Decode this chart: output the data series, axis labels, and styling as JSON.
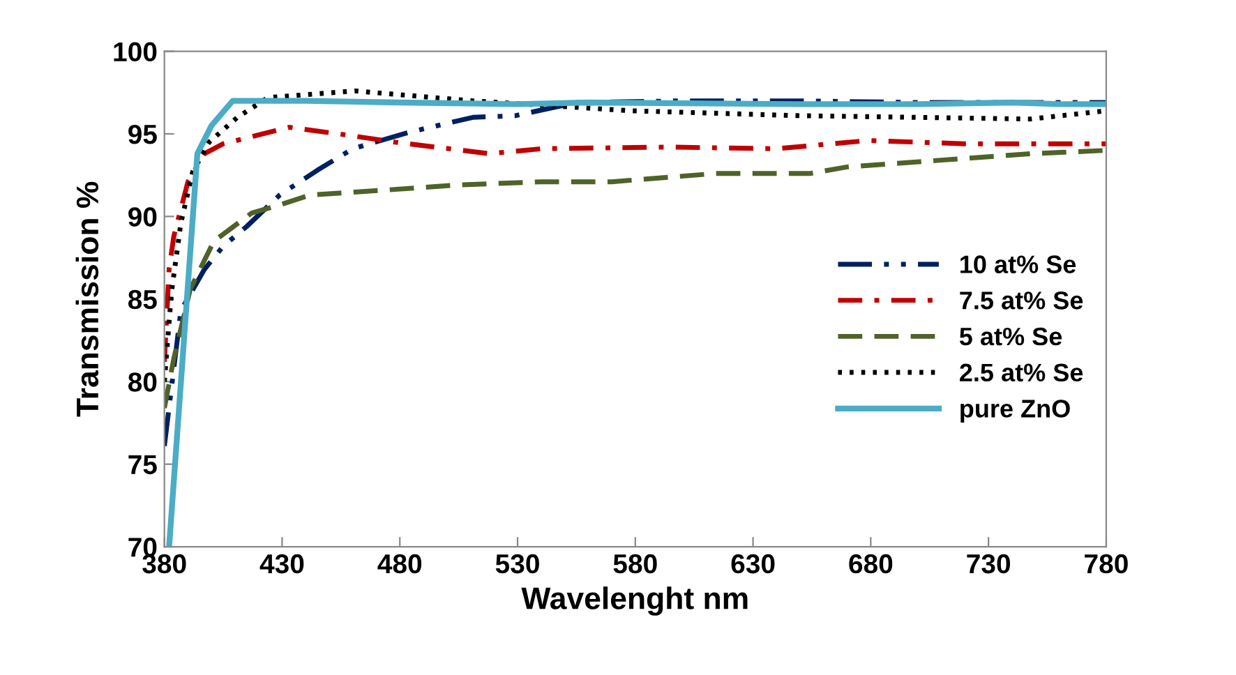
{
  "chart_data": {
    "type": "line",
    "xlabel": "Wavelenght nm",
    "ylabel": "Transmission %",
    "xlim": [
      380,
      780
    ],
    "ylim": [
      70,
      100
    ],
    "xticks": [
      380,
      430,
      480,
      530,
      580,
      630,
      680,
      730,
      780
    ],
    "yticks": [
      70,
      75,
      80,
      85,
      90,
      95,
      100
    ],
    "grid": false,
    "legend": "right",
    "marker": "none",
    "series": [
      {
        "name": "10 at% Se",
        "color": "#002060",
        "line_style": "dashdot2",
        "x": [
          380,
          387,
          397,
          405,
          415,
          429,
          445,
          460,
          484,
          511,
          529,
          555,
          600,
          650,
          700,
          780
        ],
        "values": [
          76.1,
          84.3,
          86.8,
          88.2,
          89.4,
          91.3,
          92.8,
          94.1,
          95.1,
          96.0,
          96.1,
          96.9,
          97.0,
          97.0,
          96.9,
          96.9
        ]
      },
      {
        "name": "7.5 at% Se",
        "color": "#c00000",
        "line_style": "dashdot",
        "x": [
          380,
          382,
          384,
          390,
          397,
          405,
          433,
          454,
          478,
          518,
          540,
          594,
          640,
          679,
          720,
          780
        ],
        "values": [
          81.2,
          86.8,
          88.8,
          92.1,
          93.8,
          94.4,
          95.4,
          95.0,
          94.5,
          93.8,
          94.1,
          94.2,
          94.1,
          94.6,
          94.4,
          94.4
        ]
      },
      {
        "name": "5 at% Se",
        "color": "#4f6228",
        "line_style": "dashed",
        "x": [
          380,
          384,
          391,
          401,
          417,
          429,
          442,
          474,
          504,
          540,
          570,
          614,
          654,
          670,
          709,
          748,
          780
        ],
        "values": [
          78.4,
          81.4,
          85.6,
          88.5,
          90.2,
          90.7,
          91.3,
          91.6,
          91.9,
          92.1,
          92.1,
          92.6,
          92.6,
          93.0,
          93.4,
          93.8,
          94.0
        ]
      },
      {
        "name": "2.5 at% Se",
        "color": "#000000",
        "line_style": "dotted",
        "x": [
          380,
          383,
          387,
          392,
          399,
          411,
          424,
          461,
          511,
          578,
          650,
          700,
          748,
          780
        ],
        "values": [
          80.0,
          85.4,
          89.6,
          92.7,
          94.5,
          96.0,
          97.2,
          97.6,
          97.0,
          96.4,
          96.1,
          96.0,
          95.9,
          96.4
        ]
      },
      {
        "name": "pure ZnO",
        "color": "#4bacc6",
        "line_style": "solid",
        "x": [
          382,
          394,
          400,
          409,
          440,
          480,
          530,
          560,
          650,
          700,
          740,
          760,
          780
        ],
        "values": [
          70.0,
          93.8,
          95.5,
          97.0,
          97.0,
          96.9,
          96.8,
          96.9,
          96.8,
          96.8,
          96.9,
          96.8,
          96.8
        ]
      }
    ]
  }
}
